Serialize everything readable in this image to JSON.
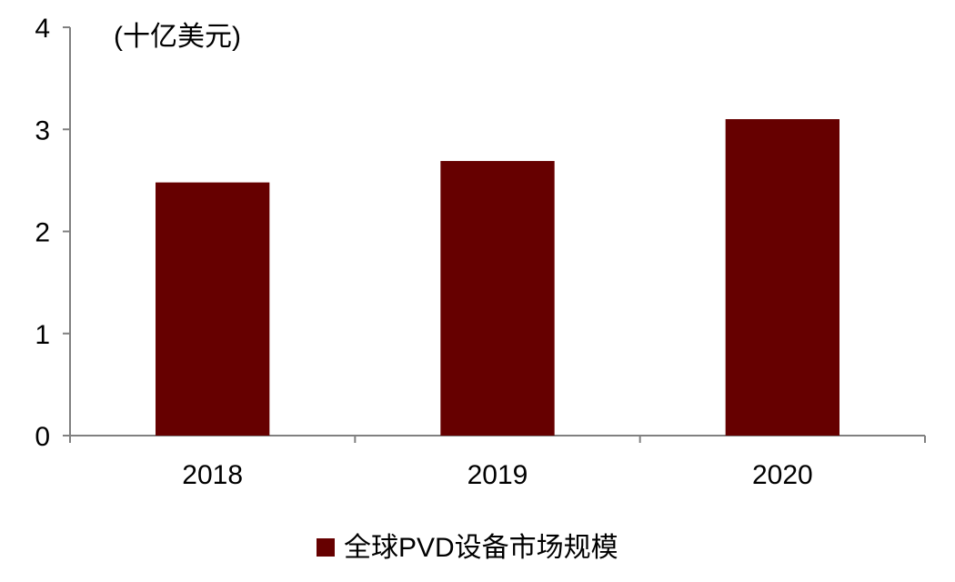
{
  "chart_data": {
    "type": "bar",
    "categories": [
      "2018",
      "2019",
      "2020"
    ],
    "series": [
      {
        "name": "全球PVD设备市场规模",
        "values": [
          2.48,
          2.69,
          3.1
        ]
      }
    ],
    "unit_label": "(十亿美元)",
    "ylim": [
      0,
      4
    ],
    "yticks": [
      0,
      1,
      2,
      3,
      4
    ],
    "grid": false,
    "legend_position": "bottom-center",
    "bar_color": "#660000"
  }
}
